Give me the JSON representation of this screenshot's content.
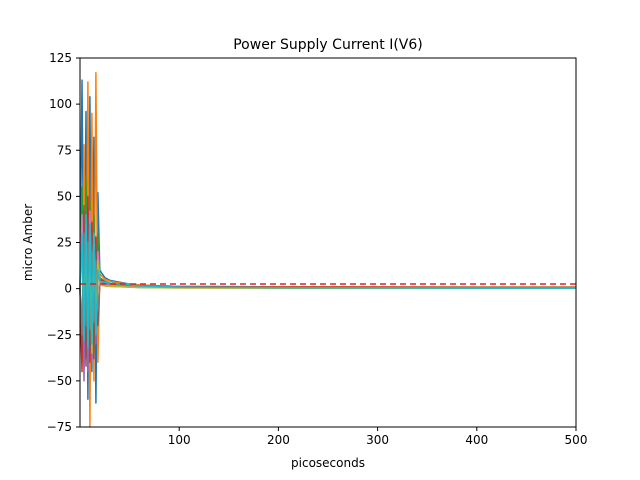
{
  "chart_data": {
    "type": "line",
    "title": "Power Supply Current I(V6)",
    "xlabel": "picoseconds",
    "ylabel": "micro Amber",
    "xlim": [
      0,
      500
    ],
    "ylim": [
      -75,
      125
    ],
    "x_ticks": [
      100,
      200,
      300,
      400,
      500
    ],
    "y_ticks": [
      -75,
      -50,
      -25,
      0,
      25,
      50,
      75,
      100,
      125
    ],
    "grid": false,
    "legend": "none",
    "reference_line": {
      "y": 2.5,
      "color": "#d62728",
      "style": "dashed"
    },
    "series": [
      {
        "color": "#1f77b4",
        "x": [
          0,
          2,
          4,
          6,
          8,
          10,
          12,
          14,
          16,
          18,
          20,
          25,
          30,
          40,
          50,
          60,
          80,
          100,
          200,
          300,
          400,
          500
        ],
        "y": [
          0,
          113,
          -20,
          96,
          -60,
          104,
          -45,
          82,
          -62,
          52,
          10,
          6,
          4.5,
          3.5,
          2.5,
          2,
          1.5,
          1.2,
          1,
          0.9,
          0.8,
          0.8
        ]
      },
      {
        "color": "#ff7f0e",
        "x": [
          0,
          2,
          4,
          6,
          8,
          10,
          12,
          14,
          16,
          18,
          20,
          25,
          30,
          40,
          50,
          60,
          80,
          100,
          200,
          300,
          400,
          500
        ],
        "y": [
          0,
          -40,
          78,
          -30,
          112,
          -75,
          95,
          -50,
          117,
          -40,
          8,
          5,
          4,
          3,
          2.5,
          2,
          1.5,
          1.2,
          1,
          0.9,
          0.8,
          0.8
        ]
      },
      {
        "color": "#2ca02c",
        "x": [
          0,
          2,
          4,
          6,
          8,
          10,
          12,
          14,
          16,
          18,
          20,
          25,
          30,
          40,
          50,
          60,
          80,
          100,
          200,
          300,
          400,
          500
        ],
        "y": [
          0,
          55,
          -35,
          60,
          -30,
          48,
          -28,
          40,
          -22,
          30,
          6,
          4,
          3,
          2.5,
          2,
          1.6,
          1.2,
          1,
          0.8,
          0.7,
          0.6,
          0.6
        ]
      },
      {
        "color": "#d62728",
        "x": [
          0,
          2,
          4,
          6,
          8,
          10,
          12,
          14,
          16,
          18,
          20,
          25,
          30,
          40,
          50,
          60,
          80,
          100,
          200,
          300,
          400,
          500
        ],
        "y": [
          0,
          -45,
          42,
          -38,
          50,
          -40,
          36,
          -30,
          28,
          -18,
          5,
          3.5,
          3,
          2.5,
          2,
          1.5,
          1.2,
          1,
          0.8,
          0.7,
          0.6,
          0.6
        ]
      },
      {
        "color": "#9467bd",
        "x": [
          0,
          2,
          4,
          6,
          8,
          10,
          12,
          14,
          16,
          18,
          20,
          25,
          30,
          40,
          50,
          60,
          80,
          100,
          200,
          300,
          400,
          500
        ],
        "y": [
          0,
          35,
          -50,
          30,
          -45,
          28,
          -40,
          22,
          -30,
          15,
          4,
          3,
          2.5,
          2,
          1.5,
          1.2,
          1,
          0.8,
          0.6,
          0.5,
          0.5,
          0.5
        ]
      },
      {
        "color": "#8c564b",
        "x": [
          0,
          2,
          4,
          6,
          8,
          10,
          12,
          14,
          16,
          18,
          20,
          25,
          30,
          40,
          50,
          60,
          80,
          100,
          200,
          300,
          400,
          500
        ],
        "y": [
          0,
          -30,
          45,
          -42,
          38,
          -35,
          30,
          -38,
          24,
          -20,
          3,
          2.5,
          2,
          1.6,
          1.2,
          1,
          0.8,
          0.6,
          0.5,
          0.4,
          0.4,
          0.4
        ]
      },
      {
        "color": "#e377c2",
        "x": [
          0,
          2,
          4,
          6,
          8,
          10,
          12,
          14,
          16,
          18,
          20,
          25,
          30,
          40,
          50,
          60,
          80,
          100,
          200,
          300,
          400,
          500
        ],
        "y": [
          0,
          40,
          -25,
          35,
          -30,
          42,
          -20,
          30,
          -25,
          20,
          3,
          2,
          1.8,
          1.4,
          1,
          0.8,
          0.6,
          0.5,
          0.4,
          0.3,
          0.3,
          0.3
        ]
      },
      {
        "color": "#7f7f7f",
        "x": [
          0,
          2,
          4,
          6,
          8,
          10,
          12,
          14,
          16,
          18,
          20,
          25,
          30,
          40,
          50,
          60,
          80,
          100,
          200,
          300,
          400,
          500
        ],
        "y": [
          0,
          -25,
          30,
          -20,
          25,
          -22,
          20,
          -18,
          15,
          -12,
          2,
          1.5,
          1.2,
          1,
          0.8,
          0.6,
          0.5,
          0.4,
          0.3,
          0.3,
          0.3,
          0.3
        ]
      },
      {
        "color": "#bcbd22",
        "x": [
          0,
          2,
          4,
          6,
          8,
          10,
          12,
          14,
          16,
          18,
          20,
          25,
          30,
          40,
          50,
          60,
          80,
          100,
          200,
          300,
          400,
          500
        ],
        "y": [
          0,
          20,
          -15,
          25,
          -20,
          22,
          -35,
          28,
          -18,
          15,
          2,
          1.5,
          1.2,
          1,
          0.8,
          0.6,
          0.5,
          0.4,
          0.3,
          0.3,
          0.3,
          0.3
        ]
      },
      {
        "color": "#17becf",
        "x": [
          0,
          2,
          4,
          6,
          8,
          10,
          12,
          14,
          16,
          18,
          20,
          25,
          30,
          40,
          50,
          60,
          80,
          100,
          200,
          300,
          400,
          500
        ],
        "y": [
          0,
          30,
          -28,
          40,
          -32,
          35,
          -30,
          30,
          -25,
          10,
          4,
          3.5,
          3,
          2.5,
          2,
          1.5,
          1,
          0.8,
          0.5,
          0.4,
          0.3,
          0.3
        ]
      }
    ]
  }
}
